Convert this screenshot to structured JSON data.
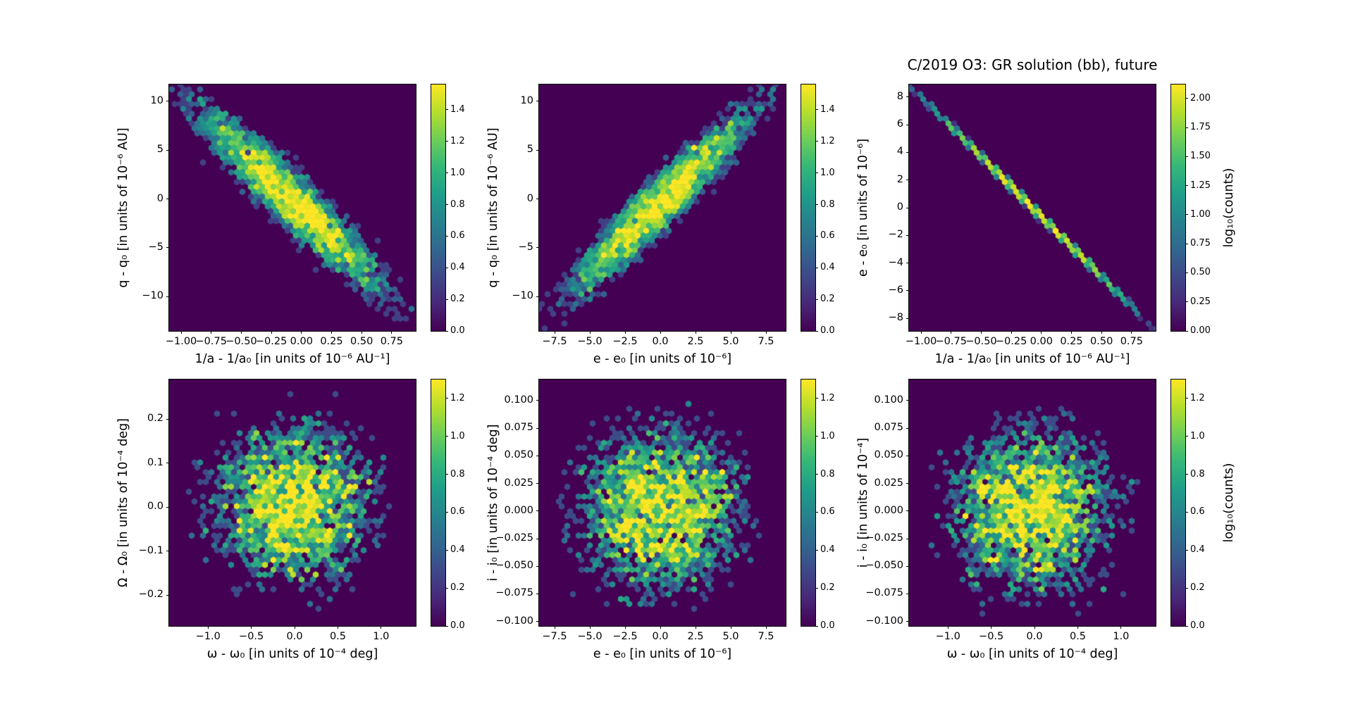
{
  "figure": {
    "title": "C/2019 O3: GR solution (bb), future",
    "background": "#ffffff",
    "colormap": "viridis",
    "viridis_stops": [
      "#440154",
      "#482878",
      "#3e4989",
      "#31688e",
      "#26828e",
      "#1f9e89",
      "#35b779",
      "#6ece58",
      "#b5de2b",
      "#fde725"
    ]
  },
  "chart_data": [
    {
      "id": "q-vs-1a",
      "type": "hexbin",
      "pattern": "elongated negative-correlation cluster",
      "xlabel": "1/a - 1/a₀ [in units of 10⁻⁶ AU⁻¹]",
      "ylabel": "q - q₀ [in units of 10⁻⁶ AU]",
      "xlim": [
        -1.1,
        0.95
      ],
      "ylim": [
        -13.5,
        11.7
      ],
      "xtick_values": [
        -1.0,
        -0.75,
        -0.5,
        -0.25,
        0.0,
        0.25,
        0.5,
        0.75
      ],
      "xtick_labels": [
        "−1.00",
        "−0.75",
        "−0.50",
        "−0.25",
        "0.00",
        "0.25",
        "0.50",
        "0.75"
      ],
      "ytick_values": [
        10,
        5,
        0,
        -5,
        -10
      ],
      "ytick_labels": [
        "10",
        "5",
        "0",
        "−5",
        "−10"
      ],
      "colorbar": {
        "vmax": 1.56,
        "tick_values": [
          0.0,
          0.2,
          0.4,
          0.6,
          0.8,
          1.0,
          1.2,
          1.4
        ],
        "tick_labels": [
          "0.0",
          "0.2",
          "0.4",
          "0.6",
          "0.8",
          "1.0",
          "1.2",
          "1.4"
        ],
        "label": ""
      },
      "hexbin_model": {
        "center": [
          0.5,
          0.53
        ],
        "sigma_major": 0.24,
        "sigma_minor": 0.042,
        "angle_deg": -45,
        "peak_counts": 45,
        "noise": 0.4,
        "seed": 101
      }
    },
    {
      "id": "q-vs-e",
      "type": "hexbin",
      "pattern": "elongated positive-correlation cluster",
      "xlabel": "e - e₀ [in units of 10⁻⁶]",
      "ylabel": "q - q₀ [in units of 10⁻⁶ AU]",
      "xlim": [
        -8.6,
        8.9
      ],
      "ylim": [
        -13.5,
        11.7
      ],
      "xtick_values": [
        -7.5,
        -5.0,
        -2.5,
        0.0,
        2.5,
        5.0,
        7.5
      ],
      "xtick_labels": [
        "−7.5",
        "−5.0",
        "−2.5",
        "0.0",
        "2.5",
        "5.0",
        "7.5"
      ],
      "ytick_values": [
        10,
        5,
        0,
        -5,
        -10
      ],
      "ytick_labels": [
        "10",
        "5",
        "0",
        "−5",
        "−10"
      ],
      "colorbar": {
        "vmax": 1.56,
        "tick_values": [
          0.0,
          0.2,
          0.4,
          0.6,
          0.8,
          1.0,
          1.2,
          1.4
        ],
        "tick_labels": [
          "0.0",
          "0.2",
          "0.4",
          "0.6",
          "0.8",
          "1.0",
          "1.2",
          "1.4"
        ],
        "label": ""
      },
      "hexbin_model": {
        "center": [
          0.49,
          0.52
        ],
        "sigma_major": 0.24,
        "sigma_minor": 0.04,
        "angle_deg": 45,
        "peak_counts": 45,
        "noise": 0.4,
        "seed": 202
      }
    },
    {
      "id": "e-vs-1a",
      "type": "hexbin",
      "pattern": "tight negative-correlation line",
      "xlabel": "1/a - 1/a₀ [in units of 10⁻⁶ AU⁻¹]",
      "ylabel": "e - e₀ [in units of 10⁻⁶]",
      "xlim": [
        -1.1,
        0.95
      ],
      "ylim": [
        -8.9,
        8.9
      ],
      "xtick_values": [
        -1.0,
        -0.75,
        -0.5,
        -0.25,
        0.0,
        0.25,
        0.5,
        0.75
      ],
      "xtick_labels": [
        "−1.00",
        "−0.75",
        "−0.50",
        "−0.25",
        "0.00",
        "0.25",
        "0.50",
        "0.75"
      ],
      "ytick_values": [
        8,
        6,
        4,
        2,
        0,
        -2,
        -4,
        -6,
        -8
      ],
      "ytick_labels": [
        "8",
        "6",
        "4",
        "2",
        "0",
        "−2",
        "−4",
        "−6",
        "−8"
      ],
      "colorbar": {
        "vmax": 2.12,
        "tick_values": [
          0.0,
          0.25,
          0.5,
          0.75,
          1.0,
          1.25,
          1.5,
          1.75,
          2.0
        ],
        "tick_labels": [
          "0.00",
          "0.25",
          "0.50",
          "0.75",
          "1.00",
          "1.25",
          "1.50",
          "1.75",
          "2.00"
        ],
        "label": "log₁₀(counts)"
      },
      "hexbin_model": {
        "center": [
          0.5,
          0.5
        ],
        "sigma_major": 0.26,
        "sigma_minor": 0.0065,
        "angle_deg": -45,
        "peak_counts": 150,
        "noise": 0.12,
        "seed": 303
      }
    },
    {
      "id": "Om-vs-om",
      "type": "hexbin",
      "pattern": "isotropic scatter cloud",
      "xlabel": "ω - ω₀ [in units of 10⁻⁴ deg]",
      "ylabel": "Ω - Ω₀ [in units of 10⁻⁴ deg]",
      "xlim": [
        -1.45,
        1.4
      ],
      "ylim": [
        -0.27,
        0.29
      ],
      "xtick_values": [
        -1.0,
        -0.5,
        0.0,
        0.5,
        1.0
      ],
      "xtick_labels": [
        "−1.0",
        "−0.5",
        "0.0",
        "0.5",
        "1.0"
      ],
      "ytick_values": [
        0.2,
        0.1,
        0.0,
        -0.1,
        -0.2
      ],
      "ytick_labels": [
        "0.2",
        "0.1",
        "0.0",
        "−0.1",
        "−0.2"
      ],
      "colorbar": {
        "vmax": 1.3,
        "tick_values": [
          0.0,
          0.2,
          0.4,
          0.6,
          0.8,
          1.0,
          1.2
        ],
        "tick_labels": [
          "0.0",
          "0.2",
          "0.4",
          "0.6",
          "0.8",
          "1.0",
          "1.2"
        ],
        "label": ""
      },
      "hexbin_model": {
        "center": [
          0.5,
          0.49
        ],
        "sigma_major": 0.15,
        "sigma_minor": 0.15,
        "angle_deg": 0,
        "peak_counts": 22,
        "noise": 0.65,
        "seed": 404
      }
    },
    {
      "id": "i-vs-e",
      "type": "hexbin",
      "pattern": "isotropic scatter cloud",
      "xlabel": "e - e₀ [in units of 10⁻⁶]",
      "ylabel": "i - i₀ [in units of 10⁻⁴ deg]",
      "xlim": [
        -8.6,
        8.9
      ],
      "ylim": [
        -0.104,
        0.119
      ],
      "xtick_values": [
        -7.5,
        -5.0,
        -2.5,
        0.0,
        2.5,
        5.0,
        7.5
      ],
      "xtick_labels": [
        "−7.5",
        "−5.0",
        "−2.5",
        "0.0",
        "2.5",
        "5.0",
        "7.5"
      ],
      "ytick_values": [
        0.1,
        0.075,
        0.05,
        0.025,
        0.0,
        -0.025,
        -0.05,
        -0.075,
        -0.1
      ],
      "ytick_labels": [
        "0.100",
        "0.075",
        "0.050",
        "0.025",
        "0.000",
        "−0.025",
        "−0.050",
        "−0.075",
        "−0.100"
      ],
      "colorbar": {
        "vmax": 1.3,
        "tick_values": [
          0.0,
          0.2,
          0.4,
          0.6,
          0.8,
          1.0,
          1.2
        ],
        "tick_labels": [
          "0.0",
          "0.2",
          "0.4",
          "0.6",
          "0.8",
          "1.0",
          "1.2"
        ],
        "label": ""
      },
      "hexbin_model": {
        "center": [
          0.49,
          0.47
        ],
        "sigma_major": 0.15,
        "sigma_minor": 0.15,
        "angle_deg": 0,
        "peak_counts": 22,
        "noise": 0.65,
        "seed": 505
      }
    },
    {
      "id": "i-vs-om",
      "type": "hexbin",
      "pattern": "isotropic scatter cloud",
      "xlabel": "ω - ω₀ [in units of 10⁻⁴ deg]",
      "ylabel": "i - i₀ [in units of 10⁻⁴]",
      "xlim": [
        -1.45,
        1.4
      ],
      "ylim": [
        -0.104,
        0.119
      ],
      "xtick_values": [
        -1.0,
        -0.5,
        0.0,
        0.5,
        1.0
      ],
      "xtick_labels": [
        "−1.0",
        "−0.5",
        "0.0",
        "0.5",
        "1.0"
      ],
      "ytick_values": [
        0.1,
        0.075,
        0.05,
        0.025,
        0.0,
        -0.025,
        -0.05,
        -0.075,
        -0.1
      ],
      "ytick_labels": [
        "0.100",
        "0.075",
        "0.050",
        "0.025",
        "0.000",
        "−0.025",
        "−0.050",
        "−0.075",
        "−0.100"
      ],
      "colorbar": {
        "vmax": 1.3,
        "tick_values": [
          0.0,
          0.2,
          0.4,
          0.6,
          0.8,
          1.0,
          1.2
        ],
        "tick_labels": [
          "0.0",
          "0.2",
          "0.4",
          "0.6",
          "0.8",
          "1.0",
          "1.2"
        ],
        "label": "log₁₀(counts)"
      },
      "hexbin_model": {
        "center": [
          0.5,
          0.47
        ],
        "sigma_major": 0.15,
        "sigma_minor": 0.15,
        "angle_deg": 0,
        "peak_counts": 22,
        "noise": 0.65,
        "seed": 606
      }
    }
  ]
}
